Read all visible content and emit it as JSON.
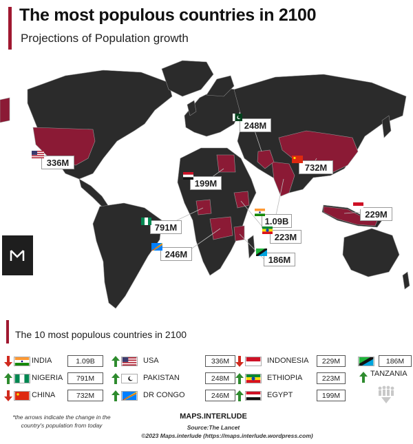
{
  "header": {
    "title": "The most populous countries in 2100",
    "subtitle": "Projections of Population growth"
  },
  "map": {
    "background_color": "#ffffff",
    "land_color": "#2b2b2b",
    "highlight_color": "#8b1a35",
    "border_color": "#9a9a9a",
    "callouts": [
      {
        "country": "USA",
        "flag": "us-flag",
        "value": "336M"
      },
      {
        "country": "PAKISTAN",
        "flag": "pakistan-flag",
        "value": "248M"
      },
      {
        "country": "CHINA",
        "flag": "china-flag",
        "value": "732M"
      },
      {
        "country": "EGYPT",
        "flag": "egypt-flag",
        "value": "199M"
      },
      {
        "country": "INDIA",
        "flag": "india-flag",
        "value": "1.09B"
      },
      {
        "country": "INDONESIA",
        "flag": "indonesia-flag",
        "value": "229M"
      },
      {
        "country": "NIGERIA",
        "flag": "nigeria-flag",
        "value": "791M"
      },
      {
        "country": "ETHIOPIA",
        "flag": "ethiopia-flag",
        "value": "223M"
      },
      {
        "country": "DR CONGO",
        "flag": "drc-flag",
        "value": "246M"
      },
      {
        "country": "TANZANIA",
        "flag": "tanzania-flag",
        "value": "186M"
      }
    ]
  },
  "legend": {
    "title": "The 10 most populous countries in 2100",
    "columns": [
      [
        {
          "name": "INDIA",
          "value": "1.09B",
          "trend": "down",
          "flag": "india-flag"
        },
        {
          "name": "NIGERIA",
          "value": "791M",
          "trend": "up",
          "flag": "nigeria-flag"
        },
        {
          "name": "CHINA",
          "value": "732M",
          "trend": "down",
          "flag": "china-flag"
        }
      ],
      [
        {
          "name": "USA",
          "value": "336M",
          "trend": "up",
          "flag": "us-flag"
        },
        {
          "name": "PAKISTAN",
          "value": "248M",
          "trend": "up",
          "flag": "pakistan-flag"
        },
        {
          "name": "DR CONGO",
          "value": "246M",
          "trend": "up",
          "flag": "drc-flag"
        }
      ],
      [
        {
          "name": "INDONESIA",
          "value": "229M",
          "trend": "down",
          "flag": "indonesia-flag"
        },
        {
          "name": "ETHIOPIA",
          "value": "223M",
          "trend": "up",
          "flag": "ethiopia-flag"
        },
        {
          "name": "EGYPT",
          "value": "199M",
          "trend": "up",
          "flag": "egypt-flag"
        }
      ],
      [
        {
          "name": "TANZANIA",
          "value": "186M",
          "trend": "up",
          "flag": "tanzania-flag"
        }
      ]
    ],
    "arrow_up_color": "#2e8b2e",
    "arrow_down_color": "#d02a1e"
  },
  "footer": {
    "note": "*the arrows indicate the change in the country's population from today",
    "brand": "MAPS.INTERLUDE",
    "source": "Source:The Lancet",
    "copyright": "©2023 Maps.interlude (https://maps.interlude.wordpress.com)"
  }
}
